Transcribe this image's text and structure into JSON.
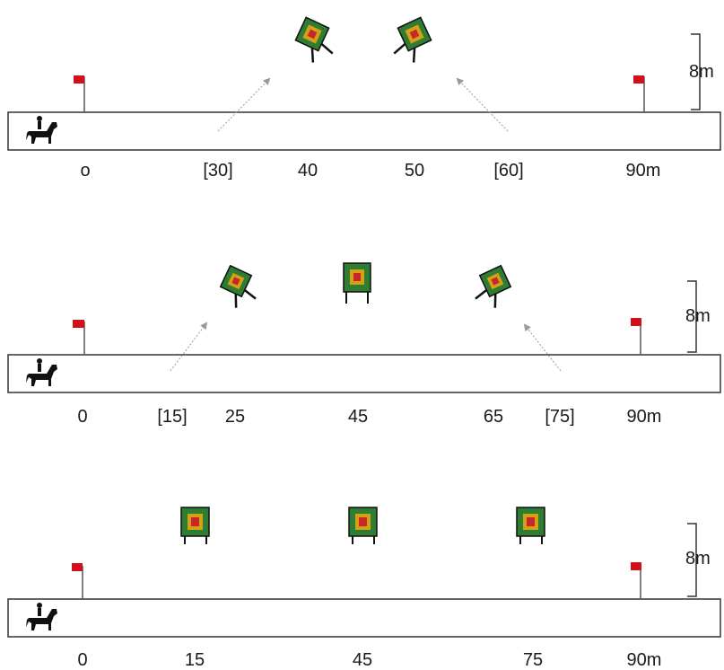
{
  "panels": [
    {
      "labels": [
        "o",
        "[30]",
        "40",
        "50",
        "[60]",
        "90m"
      ],
      "height_label": "8m",
      "targets": [
        {
          "style": "diamond",
          "lean": "right"
        },
        {
          "style": "diamond",
          "lean": "left"
        }
      ]
    },
    {
      "labels": [
        "0",
        "[15]",
        "25",
        "45",
        "65",
        "[75]",
        "90m"
      ],
      "height_label": "8m",
      "targets": [
        {
          "style": "diamond",
          "lean": "right"
        },
        {
          "style": "square"
        },
        {
          "style": "diamond",
          "lean": "left"
        }
      ]
    },
    {
      "labels": [
        "0",
        "15",
        "45",
        "75",
        "90m"
      ],
      "height_label": "8m",
      "targets": [
        {
          "style": "square"
        },
        {
          "style": "square"
        },
        {
          "style": "square"
        }
      ]
    }
  ],
  "colors": {
    "flag": "#d0101a",
    "target_outer": "#2e7d32",
    "target_ring": "#d4a017",
    "target_center": "#c62828",
    "track_border": "#333333",
    "arrow": "#9a9a9a"
  },
  "icons": {
    "rider": "horse-rider-icon",
    "flag": "flag-icon",
    "target": "archery-target-icon"
  }
}
